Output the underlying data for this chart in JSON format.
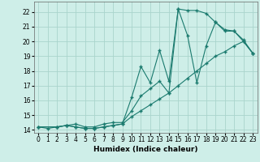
{
  "xlabel": "Humidex (Indice chaleur)",
  "bg_color": "#ceeee8",
  "grid_color": "#aad4cc",
  "line_color": "#1a7a6e",
  "xlim": [
    -0.5,
    23.5
  ],
  "ylim": [
    13.8,
    22.7
  ],
  "yticks": [
    14,
    15,
    16,
    17,
    18,
    19,
    20,
    21,
    22
  ],
  "xticks": [
    0,
    1,
    2,
    3,
    4,
    5,
    6,
    7,
    8,
    9,
    10,
    11,
    12,
    13,
    14,
    15,
    16,
    17,
    18,
    19,
    20,
    21,
    22,
    23
  ],
  "series1_x": [
    0,
    1,
    2,
    3,
    4,
    5,
    6,
    7,
    8,
    9,
    10,
    11,
    12,
    13,
    14,
    15,
    16,
    17,
    18,
    19,
    20,
    21,
    22,
    23
  ],
  "series1_y": [
    14.2,
    14.1,
    14.2,
    14.3,
    14.2,
    14.1,
    14.1,
    14.2,
    14.3,
    14.4,
    14.9,
    15.3,
    15.7,
    16.1,
    16.5,
    17.0,
    17.5,
    18.0,
    18.5,
    19.0,
    19.3,
    19.7,
    20.0,
    19.2
  ],
  "series2_x": [
    0,
    2,
    3,
    4,
    5,
    6,
    7,
    8,
    9,
    10,
    11,
    12,
    13,
    14,
    15,
    16,
    17,
    18,
    19,
    20,
    21,
    22,
    23
  ],
  "series2_y": [
    14.2,
    14.2,
    14.3,
    14.2,
    14.1,
    14.1,
    14.2,
    14.3,
    14.4,
    16.2,
    18.3,
    17.2,
    19.4,
    17.3,
    22.2,
    22.1,
    22.1,
    21.9,
    21.3,
    20.8,
    20.7,
    20.1,
    19.2
  ],
  "series3_x": [
    0,
    2,
    3,
    4,
    5,
    6,
    7,
    8,
    9,
    10,
    11,
    12,
    13,
    14,
    15,
    16,
    17,
    18,
    19,
    20,
    21,
    22,
    23
  ],
  "series3_y": [
    14.2,
    14.2,
    14.3,
    14.4,
    14.2,
    14.2,
    14.4,
    14.5,
    14.5,
    15.3,
    16.3,
    16.8,
    17.3,
    16.5,
    22.2,
    20.4,
    17.2,
    19.7,
    21.3,
    20.7,
    20.7,
    20.0,
    19.2
  ]
}
